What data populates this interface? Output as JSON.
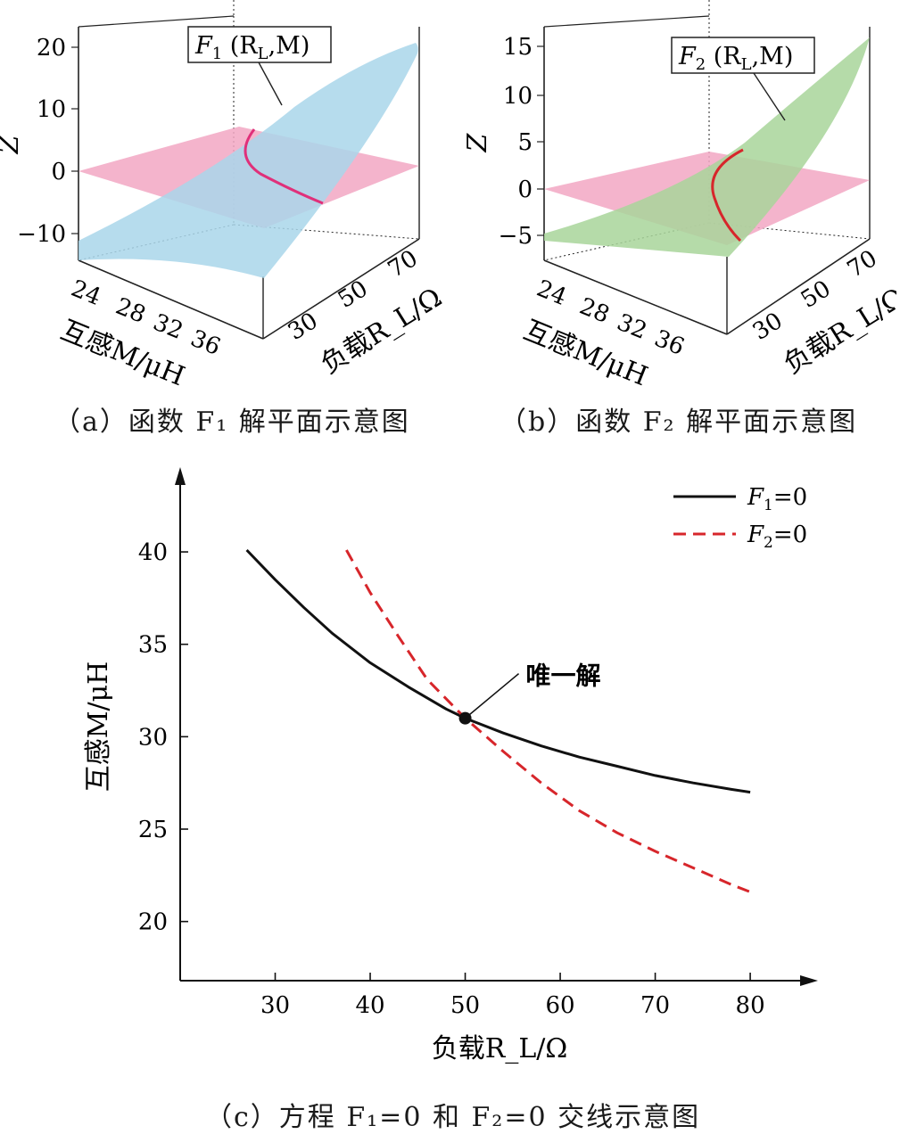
{
  "panel_a": {
    "caption": "（a）函数 F₁ 解平面示意图",
    "surface_label": "F₁ (R_L,M)",
    "surface_label_parts": {
      "F": "F",
      "sub": "1",
      "rest1": " (R",
      "rsub": "L",
      "rest2": ",M)"
    },
    "z_axis_label": "Z",
    "z_ticks": [
      "20",
      "10",
      "0",
      "−10"
    ],
    "m_axis_label": "互感M/μH",
    "m_ticks": [
      "24",
      "28",
      "32",
      "36"
    ],
    "r_axis_label": "负载R_L/Ω",
    "r_ticks": [
      "30",
      "50",
      "70"
    ],
    "surface_color": "#a9d6ea",
    "plane_color": "#f2a7c3",
    "curve_color": "#e0307a"
  },
  "panel_b": {
    "caption": "（b）函数 F₂ 解平面示意图",
    "surface_label": "F₂ (R_L,M)",
    "surface_label_parts": {
      "F": "F",
      "sub": "2",
      "rest1": " (R",
      "rsub": "L",
      "rest2": ",M)"
    },
    "z_axis_label": "Z",
    "z_ticks": [
      "15",
      "10",
      "5",
      "0",
      "−5"
    ],
    "m_axis_label": "互感M/μH",
    "m_ticks": [
      "24",
      "28",
      "32",
      "36"
    ],
    "r_axis_label": "负载R_L/Ω",
    "r_ticks": [
      "30",
      "50",
      "70"
    ],
    "surface_color": "#a8d59a",
    "plane_color": "#f2a7c3",
    "curve_color": "#d7262b"
  },
  "panel_c": {
    "caption": "（c）方程 F₁=0 和 F₂=0 交线示意图",
    "annotation": "唯一解",
    "chart_data": {
      "type": "line",
      "title": "",
      "xlabel": "负载R_L/Ω",
      "ylabel": "互感M/μH",
      "xlim": [
        20,
        86
      ],
      "ylim": [
        16.8,
        44.2
      ],
      "xticks": [
        30,
        40,
        50,
        60,
        70,
        80
      ],
      "yticks": [
        20,
        25,
        30,
        35,
        40
      ],
      "legend_position": "top-right",
      "series": [
        {
          "name": "F1=0",
          "legend_parts": {
            "F": "F",
            "sub": "1",
            "rest": "=0"
          },
          "style": "solid",
          "color": "#111111",
          "x": [
            27,
            30,
            33,
            36,
            40,
            44,
            48,
            50,
            54,
            58,
            62,
            66,
            70,
            74,
            78,
            80
          ],
          "y": [
            40.1,
            38.5,
            37.0,
            35.6,
            34.0,
            32.7,
            31.5,
            31.0,
            30.2,
            29.5,
            28.9,
            28.4,
            27.9,
            27.5,
            27.15,
            27.0
          ]
        },
        {
          "name": "F2=0",
          "legend_parts": {
            "F": "F",
            "sub": "2",
            "rest": "=0"
          },
          "style": "dashed",
          "color": "#d7262b",
          "x": [
            37.5,
            40,
            43,
            46,
            50,
            54,
            58,
            62,
            66,
            70,
            74,
            78,
            80
          ],
          "y": [
            40.1,
            37.8,
            35.4,
            33.1,
            31.0,
            29.2,
            27.5,
            26.0,
            24.8,
            23.8,
            22.9,
            22.0,
            21.6
          ]
        }
      ],
      "point": {
        "x": 50,
        "y": 31.0,
        "label": "唯一解"
      }
    }
  }
}
